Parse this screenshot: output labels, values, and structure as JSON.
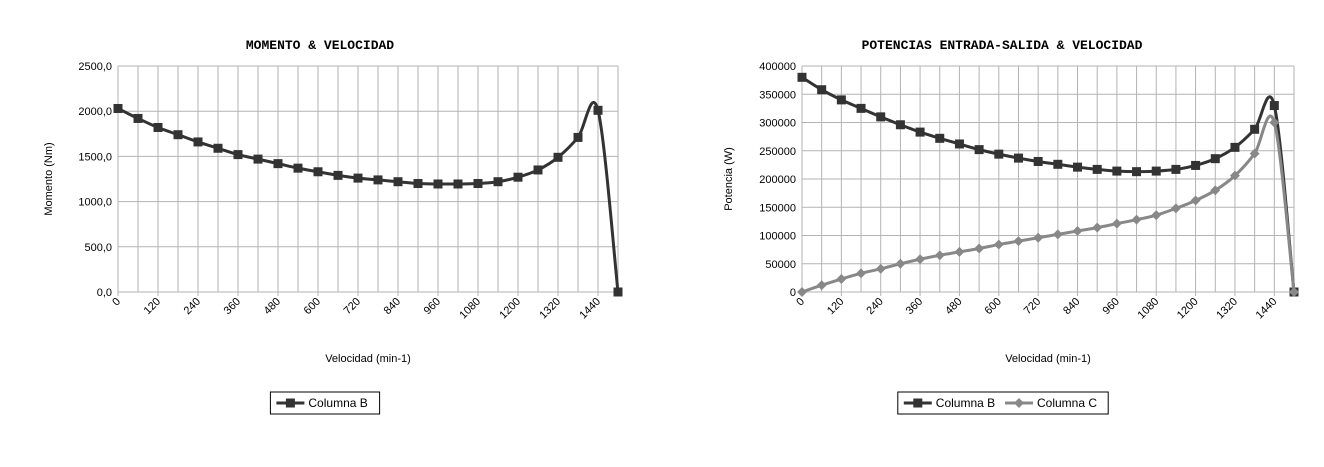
{
  "chart_data": [
    {
      "type": "line",
      "title": "MOMENTO & VELOCIDAD",
      "xlabel": "Velocidad (min-1)",
      "ylabel": "Momento (Nm)",
      "ylim": [
        0,
        2500
      ],
      "yticks": [
        "0,0",
        "500,0",
        "1000,0",
        "1500,0",
        "2000,0",
        "2500,0"
      ],
      "xticks": [
        "0",
        "120",
        "240",
        "360",
        "480",
        "600",
        "720",
        "840",
        "960",
        "1080",
        "1200",
        "1320",
        "1440"
      ],
      "xlim": [
        0,
        1500
      ],
      "grid": true,
      "legend": "bottom",
      "series": [
        {
          "name": "Columna B",
          "color": "#333333",
          "marker": "square",
          "x": [
            0,
            60,
            120,
            180,
            240,
            300,
            360,
            420,
            480,
            540,
            600,
            660,
            720,
            780,
            840,
            900,
            960,
            1020,
            1080,
            1140,
            1200,
            1260,
            1320,
            1380,
            1440,
            1500
          ],
          "y": [
            2030,
            1920,
            1820,
            1740,
            1660,
            1590,
            1520,
            1470,
            1420,
            1370,
            1330,
            1290,
            1260,
            1240,
            1220,
            1200,
            1195,
            1195,
            1200,
            1220,
            1270,
            1350,
            1490,
            1710,
            2010,
            0
          ]
        }
      ]
    },
    {
      "type": "line",
      "title": "POTENCIAS ENTRADA-SALIDA & VELOCIDAD",
      "xlabel": "Velocidad (min-1)",
      "ylabel": "Potencia (W)",
      "ylim": [
        0,
        400000
      ],
      "yticks": [
        "0",
        "50000",
        "100000",
        "150000",
        "200000",
        "250000",
        "300000",
        "350000",
        "400000"
      ],
      "xticks": [
        "0",
        "120",
        "240",
        "360",
        "480",
        "600",
        "720",
        "840",
        "960",
        "1080",
        "1200",
        "1320",
        "1440"
      ],
      "xlim": [
        0,
        1500
      ],
      "grid": true,
      "legend": "bottom",
      "series": [
        {
          "name": "Columna B",
          "color": "#333333",
          "marker": "square",
          "x": [
            0,
            60,
            120,
            180,
            240,
            300,
            360,
            420,
            480,
            540,
            600,
            660,
            720,
            780,
            840,
            900,
            960,
            1020,
            1080,
            1140,
            1200,
            1260,
            1320,
            1380,
            1440,
            1500
          ],
          "y": [
            380000,
            358000,
            340000,
            325000,
            310000,
            296000,
            283000,
            272000,
            262000,
            252000,
            244000,
            237000,
            231000,
            226000,
            221000,
            217000,
            214000,
            213000,
            214000,
            217000,
            224000,
            236000,
            256000,
            288000,
            330000,
            0
          ]
        },
        {
          "name": "Columna C",
          "color": "#888888",
          "marker": "diamond",
          "x": [
            0,
            60,
            120,
            180,
            240,
            300,
            360,
            420,
            480,
            540,
            600,
            660,
            720,
            780,
            840,
            900,
            960,
            1020,
            1080,
            1140,
            1200,
            1260,
            1320,
            1380,
            1440,
            1500
          ],
          "y": [
            0,
            12000,
            23000,
            33000,
            41000,
            50000,
            58000,
            65000,
            71000,
            77000,
            84000,
            90000,
            96000,
            102000,
            108000,
            114000,
            121000,
            128000,
            136000,
            148000,
            162000,
            180000,
            206000,
            245000,
            300000,
            0
          ]
        }
      ]
    }
  ]
}
